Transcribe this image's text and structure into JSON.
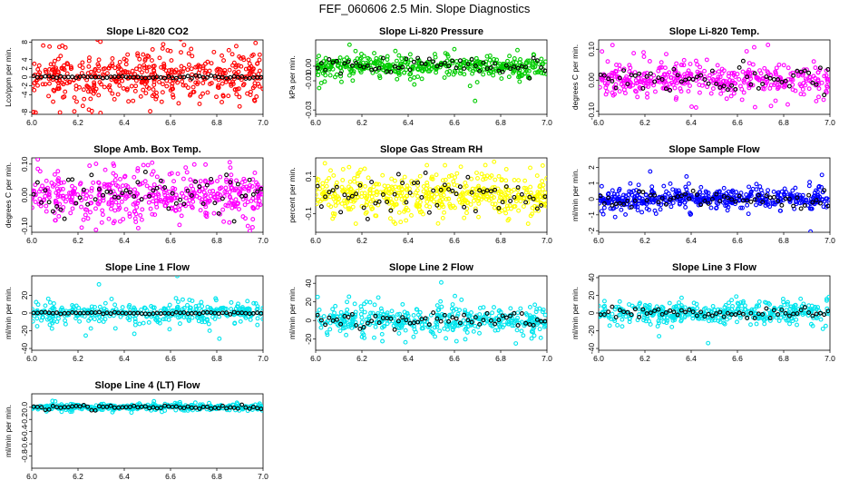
{
  "title": "FEF_060606  2.5 Min. Slope Diagnostics",
  "marker_colors": {
    "black": "#000000"
  },
  "chart_data": [
    {
      "type": "scatter",
      "title": "Slope Li-820 CO2",
      "ylabel": "Lco/ppm per min.",
      "xlim": [
        6.0,
        7.0
      ],
      "ylim": [
        -8.5,
        8.5
      ],
      "x_ticks": [
        6.0,
        6.2,
        6.4,
        6.6,
        6.8,
        7.0
      ],
      "x_tick_labels": [
        "6.0",
        "6.2",
        "6.4",
        "6.6",
        "6.8",
        "7.0"
      ],
      "y_ticks": [
        -8,
        -4,
        -2,
        0,
        2,
        4,
        8
      ],
      "y_tick_labels": [
        "-8",
        "-4",
        "-2",
        "0",
        "2",
        "4",
        "8"
      ],
      "color": "#ff0000",
      "n_colored": 480,
      "spread": 3.6,
      "black_spread": 0.15
    },
    {
      "type": "scatter",
      "title": "Slope Li-820 Pressure",
      "ylabel": "kPa per min.",
      "xlim": [
        6.0,
        7.0
      ],
      "ylim": [
        -0.033,
        0.018
      ],
      "x_ticks": [
        6.0,
        6.2,
        6.4,
        6.6,
        6.8,
        7.0
      ],
      "x_tick_labels": [
        "6.0",
        "6.2",
        "6.4",
        "6.6",
        "6.8",
        "7.0"
      ],
      "y_ticks": [
        -0.03,
        -0.01,
        0.0
      ],
      "y_tick_labels": [
        "-0.03",
        "-0.01",
        "0.00"
      ],
      "color": "#00cc00",
      "n_colored": 420,
      "spread": 0.004,
      "black_spread": 0.003
    },
    {
      "type": "scatter",
      "title": "Slope Li-820 Temp.",
      "ylabel": "degrees C per min.",
      "xlim": [
        6.0,
        7.0
      ],
      "ylim": [
        -0.11,
        0.13
      ],
      "x_ticks": [
        6.0,
        6.2,
        6.4,
        6.6,
        6.8,
        7.0
      ],
      "x_tick_labels": [
        "6.0",
        "6.2",
        "6.4",
        "6.6",
        "6.8",
        "7.0"
      ],
      "y_ticks": [
        -0.1,
        0.0,
        0.1
      ],
      "y_tick_labels": [
        "-0.10",
        "0.00",
        "0.10"
      ],
      "color": "#ff00ff",
      "n_colored": 420,
      "spread": 0.03,
      "black_spread": 0.025
    },
    {
      "type": "scatter",
      "title": "Slope Amb. Box Temp.",
      "ylabel": "degrees C per min.",
      "xlim": [
        6.0,
        7.0
      ],
      "ylim": [
        -0.12,
        0.12
      ],
      "x_ticks": [
        6.0,
        6.2,
        6.4,
        6.6,
        6.8,
        7.0
      ],
      "x_tick_labels": [
        "6.0",
        "6.2",
        "6.4",
        "6.6",
        "6.8",
        "7.0"
      ],
      "y_ticks": [
        -0.1,
        0.0,
        0.1
      ],
      "y_tick_labels": [
        "-0.10",
        "0.00",
        "0.10"
      ],
      "color": "#ff00ff",
      "n_colored": 480,
      "spread": 0.045,
      "black_spread": 0.035
    },
    {
      "type": "scatter",
      "title": "Slope Gas Stream RH",
      "ylabel": "percent per min.",
      "xlim": [
        6.0,
        7.0
      ],
      "ylim": [
        -0.2,
        0.2
      ],
      "x_ticks": [
        6.0,
        6.2,
        6.4,
        6.6,
        6.8,
        7.0
      ],
      "x_tick_labels": [
        "6.0",
        "6.2",
        "6.4",
        "6.6",
        "6.8",
        "7.0"
      ],
      "y_ticks": [
        -0.1,
        0.1
      ],
      "y_tick_labels": [
        "-0.1",
        "0.1"
      ],
      "color": "#ffff00",
      "n_colored": 520,
      "spread": 0.06,
      "black_spread": 0.06
    },
    {
      "type": "scatter",
      "title": "Slope Sample Flow",
      "ylabel": "ml/min per min.",
      "xlim": [
        6.0,
        7.0
      ],
      "ylim": [
        -2.1,
        2.6
      ],
      "x_ticks": [
        6.0,
        6.2,
        6.4,
        6.6,
        6.8,
        7.0
      ],
      "x_tick_labels": [
        "6.0",
        "6.2",
        "6.4",
        "6.6",
        "6.8",
        "7.0"
      ],
      "y_ticks": [
        -2,
        -1,
        0,
        1,
        2
      ],
      "y_tick_labels": [
        "-2",
        "-1",
        "0",
        "1",
        "2"
      ],
      "color": "#0000ff",
      "n_colored": 480,
      "spread": 0.35,
      "black_spread": 0.25
    },
    {
      "type": "scatter",
      "title": "Slope Line 1 Flow",
      "ylabel": "ml/min per min.",
      "xlim": [
        6.0,
        7.0
      ],
      "ylim": [
        -42,
        42
      ],
      "x_ticks": [
        6.0,
        6.2,
        6.4,
        6.6,
        6.8,
        7.0
      ],
      "x_tick_labels": [
        "6.0",
        "6.2",
        "6.4",
        "6.6",
        "6.8",
        "7.0"
      ],
      "y_ticks": [
        -40,
        -20,
        0,
        20
      ],
      "y_tick_labels": [
        "-40",
        "-20",
        "0",
        "20"
      ],
      "color": "#00e5ee",
      "n_colored": 380,
      "spread": 6,
      "black_spread": 0.5
    },
    {
      "type": "scatter",
      "title": "Slope Line 2 Flow",
      "ylabel": "ml/min per min.",
      "xlim": [
        6.0,
        7.0
      ],
      "ylim": [
        -32,
        48
      ],
      "x_ticks": [
        6.0,
        6.2,
        6.4,
        6.6,
        6.8,
        7.0
      ],
      "x_tick_labels": [
        "6.0",
        "6.2",
        "6.4",
        "6.6",
        "6.8",
        "7.0"
      ],
      "y_ticks": [
        -20,
        0,
        20,
        40
      ],
      "y_tick_labels": [
        "-20",
        "0",
        "20",
        "40"
      ],
      "color": "#00e5ee",
      "n_colored": 420,
      "spread": 8,
      "black_spread": 5
    },
    {
      "type": "scatter",
      "title": "Slope Line 3 Flow",
      "ylabel": "ml/min per min.",
      "xlim": [
        6.0,
        7.0
      ],
      "ylim": [
        -42,
        42
      ],
      "x_ticks": [
        6.0,
        6.2,
        6.4,
        6.6,
        6.8,
        7.0
      ],
      "x_tick_labels": [
        "6.0",
        "6.2",
        "6.4",
        "6.6",
        "6.8",
        "7.0"
      ],
      "y_ticks": [
        -40,
        -20,
        0,
        20,
        40
      ],
      "y_tick_labels": [
        "-40",
        "-20",
        "0",
        "20",
        "40"
      ],
      "color": "#00e5ee",
      "n_colored": 420,
      "spread": 7,
      "black_spread": 3
    },
    {
      "type": "scatter",
      "title": "Slope Line 4 (LT) Flow",
      "ylabel": "ml/min per min.",
      "xlim": [
        6.0,
        7.0
      ],
      "ylim": [
        -1.0,
        0.22
      ],
      "x_ticks": [
        6.0,
        6.2,
        6.4,
        6.6,
        6.8,
        7.0
      ],
      "x_tick_labels": [
        "6.0",
        "6.2",
        "6.4",
        "6.6",
        "6.8",
        "7.0"
      ],
      "y_ticks": [
        -0.8,
        -0.6,
        -0.4,
        -0.2,
        0.0
      ],
      "y_tick_labels": [
        "-0.8",
        "-0.6",
        "-0.4",
        "-0.2",
        "0.0"
      ],
      "color": "#00e5ee",
      "n_colored": 380,
      "spread": 0.03,
      "black_spread": 0.02
    }
  ]
}
